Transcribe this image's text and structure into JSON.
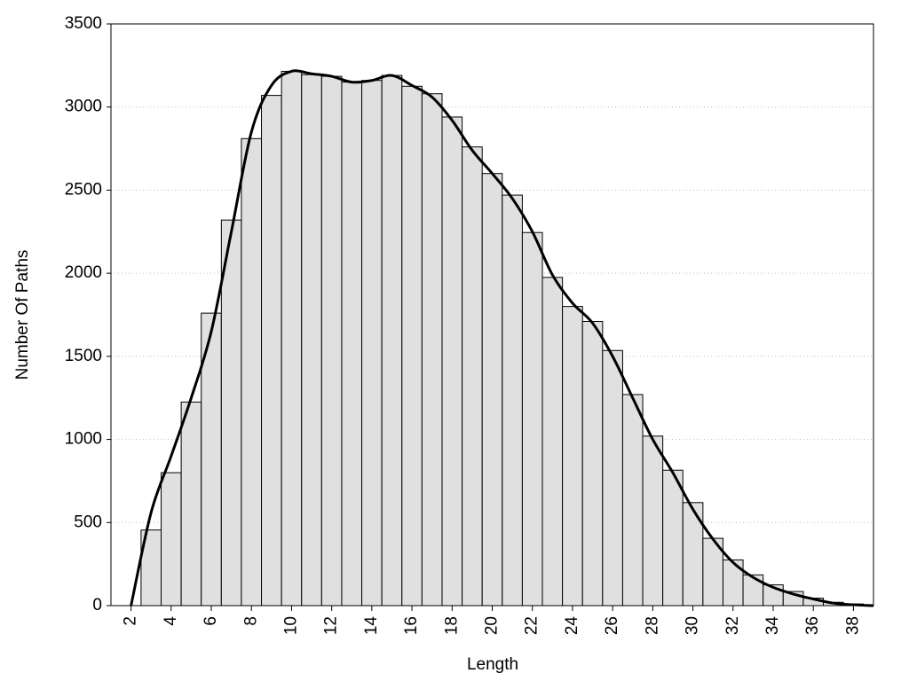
{
  "chart_data": {
    "type": "histogram",
    "x_label": "Length",
    "y_label": "Number Of Paths",
    "bins": [
      2.5,
      3.5,
      4.5,
      5.5,
      6.5,
      7.5,
      8.5,
      9.5,
      10.5,
      11.5,
      12.5,
      13.5,
      14.5,
      15.5,
      16.5,
      17.5,
      18.5,
      19.5,
      20.5,
      21.5,
      22.5,
      23.5,
      24.5,
      25.5,
      26.5,
      27.5,
      28.5,
      29.5,
      30.5,
      31.5,
      32.5,
      33.5,
      34.5,
      35.5,
      36.5,
      37.5,
      38.5
    ],
    "values": [
      455,
      800,
      1225,
      1760,
      2320,
      2810,
      3070,
      3215,
      3195,
      3185,
      3150,
      3160,
      3190,
      3125,
      3080,
      2940,
      2760,
      2600,
      2470,
      2245,
      1975,
      1800,
      1710,
      1535,
      1270,
      1020,
      815,
      620,
      405,
      275,
      185,
      125,
      85,
      45,
      20,
      10
    ],
    "color": "#e0e0e0",
    "curve": {
      "color": "#000000",
      "x": [
        2,
        3,
        4,
        5,
        6,
        7,
        8,
        9,
        10,
        11,
        12,
        13,
        14,
        15,
        16,
        17,
        18,
        19,
        20,
        21,
        22,
        23,
        24,
        25,
        26,
        27,
        28,
        29,
        30,
        31,
        32,
        33,
        34,
        35,
        36,
        37,
        38,
        39
      ],
      "values": [
        0,
        560,
        900,
        1250,
        1650,
        2250,
        2850,
        3130,
        3215,
        3200,
        3185,
        3150,
        3160,
        3190,
        3130,
        3060,
        2920,
        2740,
        2600,
        2450,
        2250,
        1990,
        1820,
        1700,
        1500,
        1250,
        1000,
        800,
        580,
        400,
        260,
        170,
        110,
        70,
        40,
        15,
        5,
        0
      ]
    },
    "xlim": [
      1,
      39
    ],
    "ylim": [
      0,
      3500
    ],
    "xticks": [
      2,
      4,
      6,
      8,
      10,
      12,
      14,
      16,
      18,
      20,
      22,
      24,
      26,
      28,
      30,
      32,
      34,
      36,
      38
    ],
    "yticks": [
      0,
      500,
      1000,
      1500,
      2000,
      2500,
      3000,
      3500
    ],
    "grid": true
  }
}
